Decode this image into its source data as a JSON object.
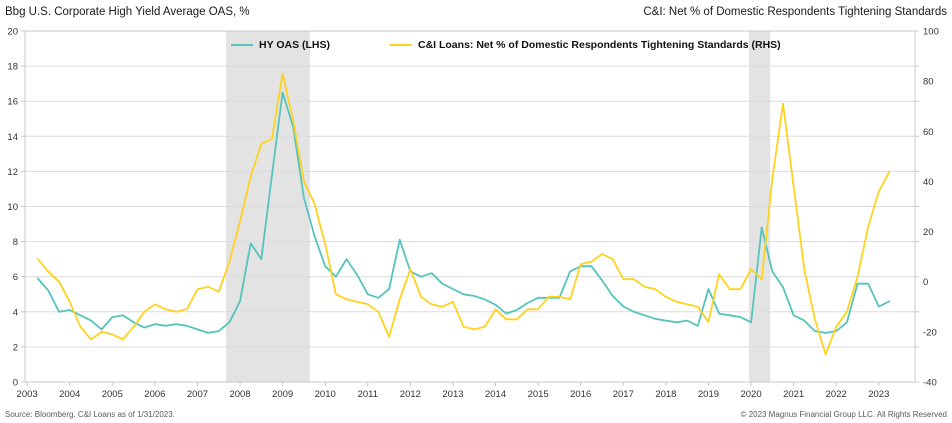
{
  "titles": {
    "left": "Bbg U.S. Corporate High Yield Average OAS, %",
    "right": "C&I: Net % of Domestic Respondents Tightening Standards"
  },
  "legend": [
    {
      "label": "HY OAS (LHS)",
      "color": "#54c4bc"
    },
    {
      "label": "C&I Loans: Net % of Domestic Respondents Tightening Standards (RHS)",
      "color": "#ffd21f"
    }
  ],
  "footer": {
    "source": "Source: Bloomberg. C&I Loans as of 1/31/2023.",
    "copyright": "© 2023 Magnus Financial Group LLC. All Rights Reserved"
  },
  "colors": {
    "hy_oas_line": "#54c4bc",
    "ci_loans_line": "#ffd21f",
    "recession_band": "#e3e3e3",
    "gridline": "#dcdcdc",
    "plot_border": "#c8c8c8",
    "tick_label": "#333333"
  },
  "chart_data": {
    "type": "line",
    "frequency": "quarterly",
    "x_start": 2003.25,
    "x_step": 0.25,
    "x_domain": [
      2002.95,
      2023.85
    ],
    "x_axis": {
      "ticks": [
        2003,
        2004,
        2005,
        2006,
        2007,
        2008,
        2009,
        2010,
        2011,
        2012,
        2013,
        2014,
        2015,
        2016,
        2017,
        2018,
        2019,
        2020,
        2021,
        2022,
        2023
      ]
    },
    "left_axis": {
      "min": 0,
      "max": 20,
      "tick_step": 2,
      "ticks": [
        0,
        2,
        4,
        6,
        8,
        10,
        12,
        14,
        16,
        18,
        20
      ]
    },
    "right_axis": {
      "min": -40,
      "max": 100,
      "tick_step": 20,
      "ticks": [
        -40,
        -20,
        0,
        20,
        40,
        60,
        80,
        100
      ]
    },
    "grid": true,
    "legend_position": "top-center",
    "recession_bands": [
      {
        "from": 2007.67,
        "to": 2009.64
      },
      {
        "from": 2019.95,
        "to": 2020.45
      }
    ],
    "series": [
      {
        "name": "HY OAS (LHS)",
        "axis": "left",
        "color": "#54c4bc",
        "values": [
          5.9,
          5.2,
          4.0,
          4.1,
          3.8,
          3.5,
          3.0,
          3.7,
          3.8,
          3.4,
          3.1,
          3.3,
          3.2,
          3.3,
          3.2,
          3.0,
          2.8,
          2.9,
          3.4,
          4.6,
          7.9,
          7.0,
          11.8,
          16.5,
          14.5,
          10.5,
          8.3,
          6.6,
          6.0,
          7.0,
          6.1,
          5.0,
          4.8,
          5.3,
          8.1,
          6.3,
          6.0,
          6.2,
          5.6,
          5.3,
          5.0,
          4.9,
          4.7,
          4.4,
          3.9,
          4.1,
          4.5,
          4.8,
          4.8,
          4.8,
          6.3,
          6.6,
          6.6,
          5.8,
          4.9,
          4.3,
          4.0,
          3.8,
          3.6,
          3.5,
          3.4,
          3.5,
          3.2,
          5.3,
          3.9,
          3.8,
          3.7,
          3.4,
          8.8,
          6.3,
          5.4,
          3.8,
          3.5,
          2.9,
          2.8,
          2.9,
          3.4,
          5.6,
          5.6,
          4.3,
          4.6
        ]
      },
      {
        "name": "C&I Loans: Net % of Domestic Respondents Tightening Standards (RHS)",
        "axis": "right",
        "color": "#ffd21f",
        "values": [
          9,
          4,
          0,
          -8,
          -18,
          -23,
          -20,
          -21,
          -23,
          -18,
          -12,
          -9,
          -11,
          -12,
          -11,
          -3,
          -2,
          -4,
          8,
          24,
          42,
          55,
          57,
          83,
          64,
          40,
          31,
          15,
          -5,
          -7,
          -8,
          -9,
          -12,
          -22,
          -7,
          5,
          -6,
          -9,
          -10,
          -8,
          -18,
          -19,
          -18,
          -11,
          -15,
          -15,
          -11,
          -11,
          -6,
          -6,
          -7,
          7,
          8,
          11,
          9,
          1,
          1,
          -2,
          -3,
          -6,
          -8,
          -9,
          -10,
          -16,
          3,
          -3,
          -3,
          5,
          1,
          41,
          71,
          38,
          5,
          -15,
          -29,
          -18,
          -12,
          2,
          22,
          36,
          44
        ]
      }
    ]
  }
}
